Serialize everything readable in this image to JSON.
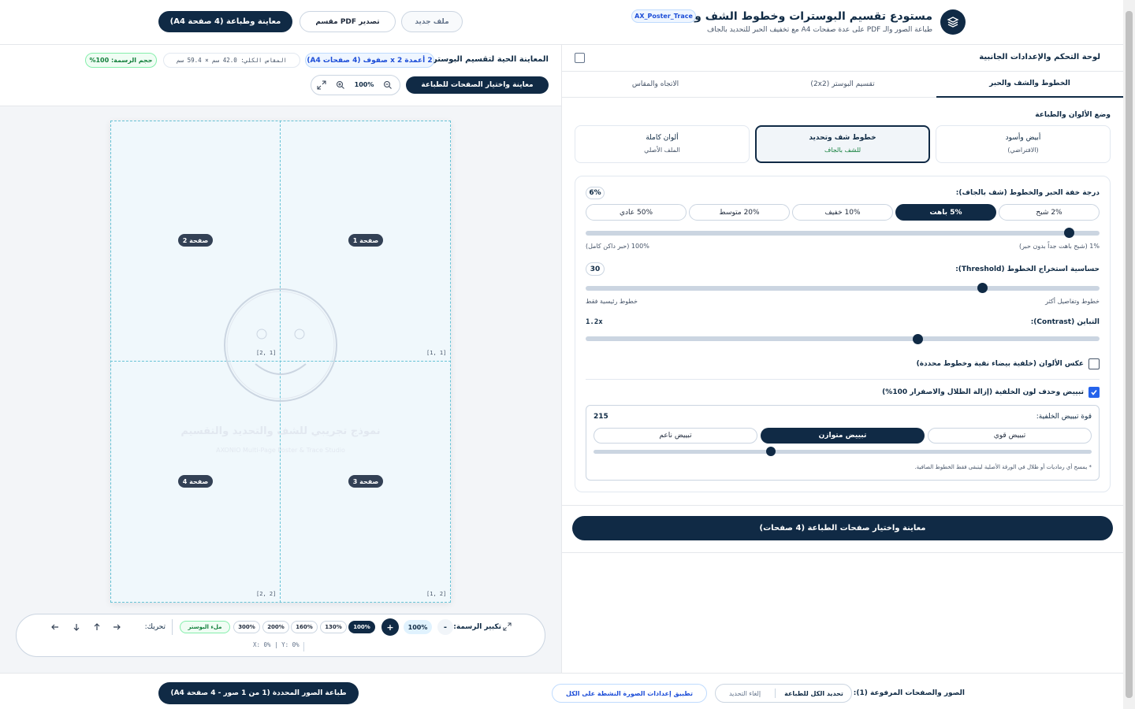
{
  "header": {
    "title": "مستودع تقسيم البوسترات وخطوط الشف والتحديد",
    "badge": "AX_Poster_Trace",
    "subtitle": "طباعة الصور والـ PDF على عدة صفحات A4 مع تخفيف الحبر للتحديد بالجاف",
    "buttons": [
      "ملف جديد",
      "تصدير PDF مقسم",
      "معاينة وطباعة (4 صفحة A4)"
    ]
  },
  "settings": {
    "panel_title": "لوحة التحكم والإعدادات الجانبية",
    "tabs": [
      "الخطوط والشف والحبر",
      "تقسيم البوستر (2x2)",
      "الاتجاه والمقاس"
    ],
    "section": "وضع الألوان والطباعة",
    "modes": [
      {
        "title": "أبيض وأسود",
        "sub": "(الافتراضي)"
      },
      {
        "title": "خطوط شف وتحديد",
        "sub": "للشف بالجاف"
      },
      {
        "title": "ألوان كاملة",
        "sub": "الملف الأصلي"
      }
    ],
    "ink": {
      "label": "درجة خفة الحبر والخطوط (شف بالجاف):",
      "value": "6%",
      "options": [
        "2% شبح",
        "5% باهت",
        "10% خفيف",
        "20% متوسط",
        "50% عادي"
      ],
      "min_label": "1% (شبح باهت جداً بدون حبر)",
      "max_label": "100% (حبر داكن كامل)"
    },
    "threshold": {
      "label": "حساسية استخراج الخطوط (Threshold):",
      "value": "30",
      "min_label": "خطوط وتفاصيل أكثر",
      "max_label": "خطوط رئيسية فقط"
    },
    "contrast": {
      "label": "التباين (Contrast):",
      "value": "1.2x"
    },
    "invert": "عكس الألوان (خلفية بيضاء نقية وخطوط محددة)",
    "whiten": "تبييض وحذف لون الخلفية (إزالة الظلال والاصفرار 100%)",
    "whitening": {
      "label": "قوة تبييض الخلفية:",
      "value": "215",
      "options": [
        "تبييض قوي",
        "تبييض متوازن",
        "تبييض ناعم"
      ],
      "note": "* يمسح أي رماديات أو ظلال في الورقة الأصلية ليتبقى فقط الخطوط الصافية."
    },
    "main_button": "معاينة واختيار صفحات الطباعة (4 صفحات)"
  },
  "preview": {
    "title": "المعاينة الحية لتقسيم البوستر:",
    "grid_badge": "2 أعمدة x 2 صفوف (4 صفحات A4)",
    "size": "المقاس الكلي: 42.0 سم × 59.4 سم",
    "scale_badge": "حجم الرسمة: 100%",
    "select_button": "معاينة واختيار الصفحات للطباعة",
    "zoom": "100%",
    "pages": [
      "صفحة 1",
      "صفحة 2",
      "صفحة 3",
      "صفحة 4"
    ],
    "coords": [
      "[1 ,1]",
      "[1 ,2]",
      "[2 ,1]",
      "[2 ,2]"
    ],
    "watermark": "نموذج تجريبي للشف والتحديد والتقسيم",
    "watermark_sub": "AXONIO Multi-Page Poster & Trace Studio",
    "toolbar": {
      "zoom_label": "تكبير الرسمة:",
      "minus": "-",
      "zoom_value": "100%",
      "plus": "+",
      "presets": [
        "100%",
        "130%",
        "160%",
        "200%",
        "300%"
      ],
      "fill": "ملء البوستر",
      "move_label": "تحريك:",
      "position": "X: 0% | Y: 0%"
    }
  },
  "footer": {
    "label": "الصور والصفحات المرفوعة (1):",
    "select_all": "تحديد الكل للطباعة",
    "deselect": "إلغاء التحديد",
    "apply_all": "تطبيق إعدادات الصورة النشطة على الكل",
    "print": "طباعة الصور المحددة (1 من 1 صور - 4 صفحة A4)"
  }
}
